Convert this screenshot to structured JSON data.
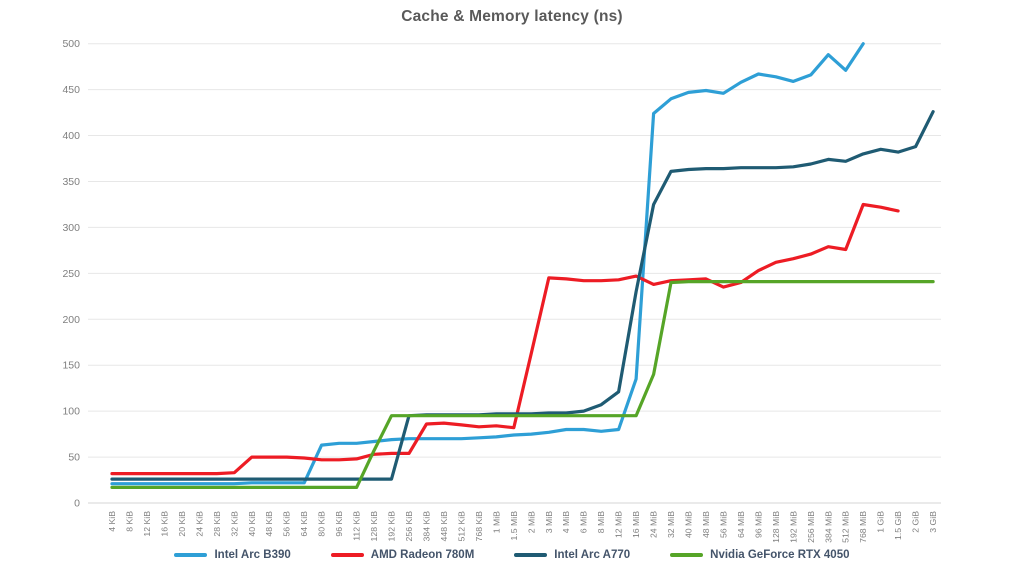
{
  "chart_data": {
    "type": "line",
    "title": "Cache & Memory latency (ns)",
    "title_color": "#595959",
    "legend_position": "bottom",
    "legend_text_color": "#44546a",
    "grid": true,
    "x_label_rotation": -90,
    "axis": {
      "y_min": 0,
      "y_max": 500,
      "y_step": 50,
      "y_ticks": [
        0,
        50,
        100,
        150,
        200,
        250,
        300,
        350,
        400,
        450,
        500
      ],
      "tick_color": "#7f7f7f",
      "grid_color": "#e7e7e7",
      "baseline_color": "#d6d6d6"
    },
    "categories": [
      "4 KiB",
      "8 KiB",
      "12 KiB",
      "16 KiB",
      "20 KiB",
      "24 KiB",
      "28 KiB",
      "32 KiB",
      "40 KiB",
      "48 KiB",
      "56 KiB",
      "64 KiB",
      "80 KiB",
      "96 KiB",
      "112 KiB",
      "128 KiB",
      "192 KiB",
      "256 KiB",
      "384 KiB",
      "448 KiB",
      "512 KiB",
      "768 KiB",
      "1 MiB",
      "1.5 MiB",
      "2 MiB",
      "3 MiB",
      "4 MiB",
      "6 MiB",
      "8 MiB",
      "12 MiB",
      "16 MiB",
      "24 MiB",
      "32 MiB",
      "40 MiB",
      "48 MiB",
      "56 MiB",
      "64 MiB",
      "96 MiB",
      "128 MiB",
      "192 MiB",
      "256 MiB",
      "384 MiB",
      "512 MiB",
      "768 MiB",
      "1 GiB",
      "1.5 GiB",
      "2 GiB",
      "3 GiB"
    ],
    "series": [
      {
        "name": "Intel Arc B390",
        "color": "#2e9fd6",
        "values": [
          21,
          21,
          21,
          21,
          21,
          21,
          21,
          21,
          22,
          22,
          22,
          22,
          63,
          65,
          65,
          67,
          69,
          70,
          70,
          70,
          70,
          71,
          72,
          74,
          75,
          77,
          80,
          80,
          78,
          80,
          135,
          424,
          440,
          447,
          449,
          446,
          458,
          467,
          464,
          459,
          466,
          488,
          471,
          500,
          null,
          null,
          null,
          null
        ]
      },
      {
        "name": "AMD Radeon 780M",
        "color": "#ed1c24",
        "values": [
          32,
          32,
          32,
          32,
          32,
          32,
          32,
          33,
          50,
          50,
          50,
          49,
          47,
          47,
          48,
          53,
          54,
          54,
          86,
          87,
          85,
          83,
          84,
          82,
          163,
          245,
          244,
          242,
          242,
          243,
          247,
          238,
          242,
          243,
          244,
          235,
          240,
          253,
          262,
          266,
          271,
          279,
          276,
          325,
          322,
          318,
          null,
          null
        ]
      },
      {
        "name": "Intel Arc A770",
        "color": "#1f5b73",
        "values": [
          26,
          26,
          26,
          26,
          26,
          26,
          26,
          26,
          26,
          26,
          26,
          26,
          26,
          26,
          26,
          26,
          26,
          95,
          96,
          96,
          96,
          96,
          97,
          97,
          97,
          98,
          98,
          100,
          107,
          121,
          230,
          325,
          361,
          363,
          364,
          364,
          365,
          365,
          365,
          366,
          369,
          374,
          372,
          380,
          385,
          382,
          388,
          426
        ]
      },
      {
        "name": "Nvidia GeForce RTX 4050",
        "color": "#56a527",
        "values": [
          17,
          17,
          17,
          17,
          17,
          17,
          17,
          17,
          17,
          17,
          17,
          17,
          17,
          17,
          17,
          57,
          95,
          95,
          95,
          95,
          95,
          95,
          95,
          95,
          95,
          95,
          95,
          95,
          95,
          95,
          95,
          140,
          240,
          241,
          241,
          241,
          241,
          241,
          241,
          241,
          241,
          241,
          241,
          241,
          241,
          241,
          241,
          241
        ]
      }
    ]
  }
}
